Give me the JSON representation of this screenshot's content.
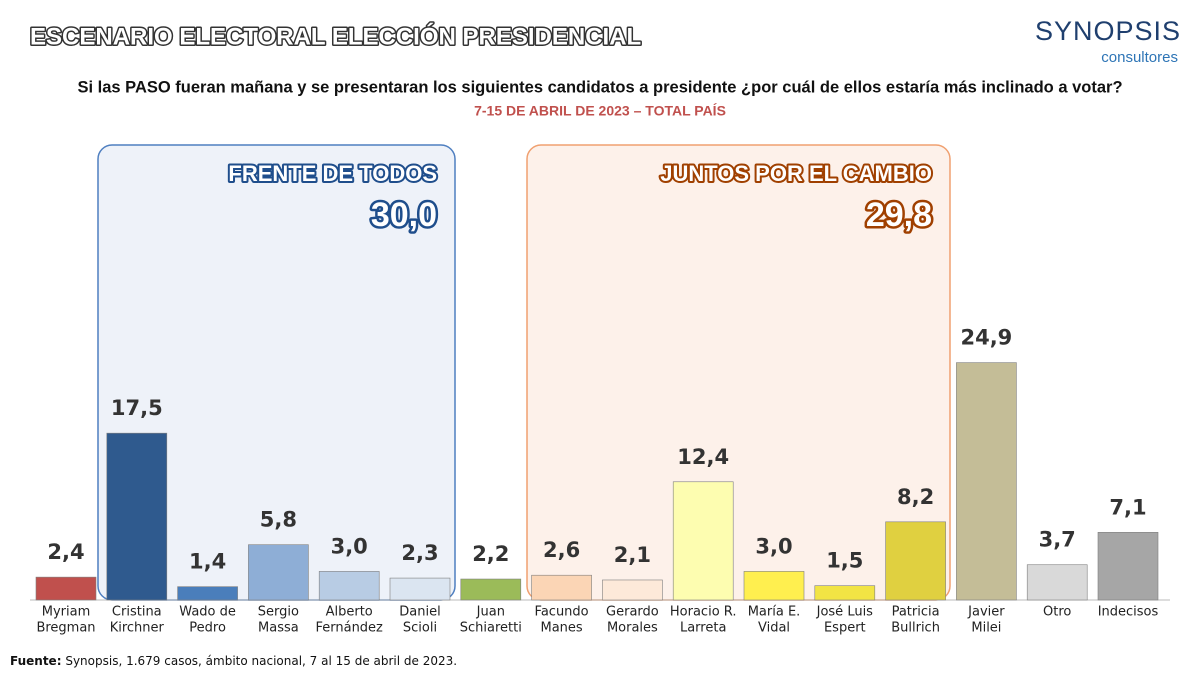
{
  "logo": {
    "name": "SYNOPSIS",
    "sub": "consultores"
  },
  "chart_data": {
    "type": "bar",
    "title": "ESCENARIO ELECTORAL ELECCIÓN PRESIDENCIAL",
    "subtitle": "Si las PASO fueran mañana y se presentaran los siguientes candidatos a presidente ¿por cuál de ellos estaría más inclinado a votar?",
    "date": "7-15 DE ABRIL DE 2023 – TOTAL PAÍS",
    "categories": [
      [
        "Myriam",
        "Bregman"
      ],
      [
        "Cristina",
        "Kirchner"
      ],
      [
        "Wado de",
        "Pedro"
      ],
      [
        "Sergio",
        "Massa"
      ],
      [
        "Alberto",
        "Fernández"
      ],
      [
        "Daniel",
        "Scioli"
      ],
      [
        "Juan",
        "Schiaretti"
      ],
      [
        "Facundo",
        "Manes"
      ],
      [
        "Gerardo",
        "Morales"
      ],
      [
        "Horacio R.",
        "Larreta"
      ],
      [
        "María E.",
        "Vidal"
      ],
      [
        "José Luis",
        "Espert"
      ],
      [
        "Patricia",
        "Bullrich"
      ],
      [
        "Javier",
        "Milei"
      ],
      [
        "Otro"
      ],
      [
        "Indecisos"
      ]
    ],
    "values": [
      2.4,
      17.5,
      1.4,
      5.8,
      3.0,
      2.3,
      2.2,
      2.6,
      2.1,
      12.4,
      3.0,
      1.5,
      8.2,
      24.9,
      3.7,
      7.1
    ],
    "value_labels": [
      "2,4",
      "17,5",
      "1,4",
      "5,8",
      "3,0",
      "2,3",
      "2,2",
      "2,6",
      "2,1",
      "12,4",
      "3,0",
      "1,5",
      "8,2",
      "24,9",
      "3,7",
      "7,1"
    ],
    "colors": [
      "#c0504d",
      "#2f5a8e",
      "#4a7ebb",
      "#8eaed6",
      "#b8cce4",
      "#dbe5f1",
      "#9bbb59",
      "#fbd5b5",
      "#fde9d9",
      "#fdfdb0",
      "#ffef4f",
      "#f2e444",
      "#e0d040",
      "#c4bd97",
      "#d9d9d9",
      "#a6a6a6"
    ],
    "ylim": [
      0,
      30
    ],
    "groups": [
      {
        "label": "FRENTE DE TODOS",
        "value": 30.0,
        "value_label": "30,0"
      },
      {
        "label": "JUNTOS POR EL CAMBIO",
        "value": 29.8,
        "value_label": "29,8"
      }
    ],
    "source_label": "Fuente:",
    "source": "Synopsis, 1.679 casos, ámbito nacional, 7 al 15 de abril de 2023."
  }
}
